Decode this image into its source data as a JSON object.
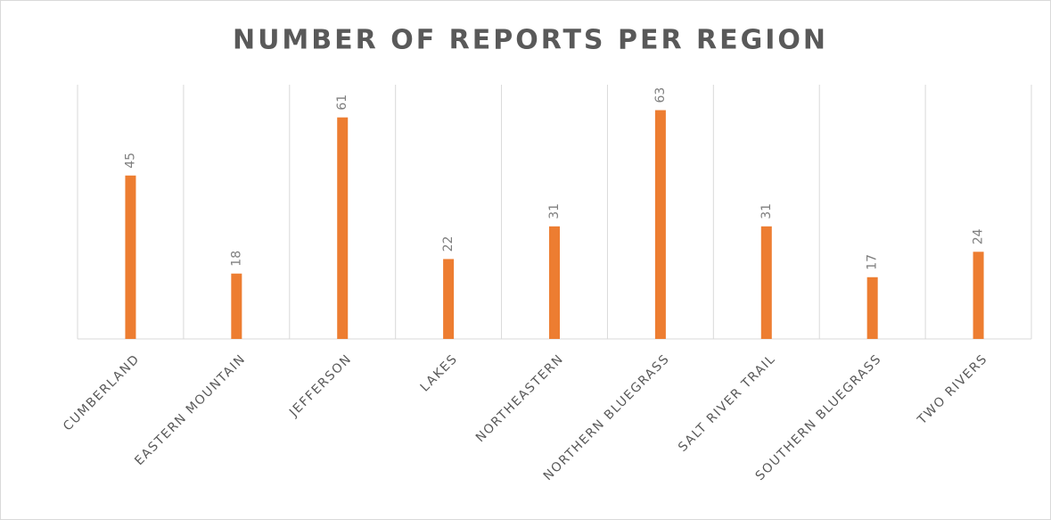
{
  "chart_data": {
    "type": "bar",
    "title": "NUMBER OF REPORTS PER REGION",
    "categories": [
      "CUMBERLAND",
      "EASTERN MOUNTAIN",
      "JEFFERSON",
      "LAKES",
      "NORTHEASTERN",
      "NORTHERN BLUEGRASS",
      "SALT RIVER TRAIL",
      "SOUTHERN BLUEGRASS",
      "TWO RIVERS"
    ],
    "values": [
      45,
      18,
      61,
      22,
      31,
      63,
      31,
      17,
      24
    ],
    "color": "#ed7d31",
    "ylim": [
      0,
      70
    ],
    "data_labels": true
  }
}
